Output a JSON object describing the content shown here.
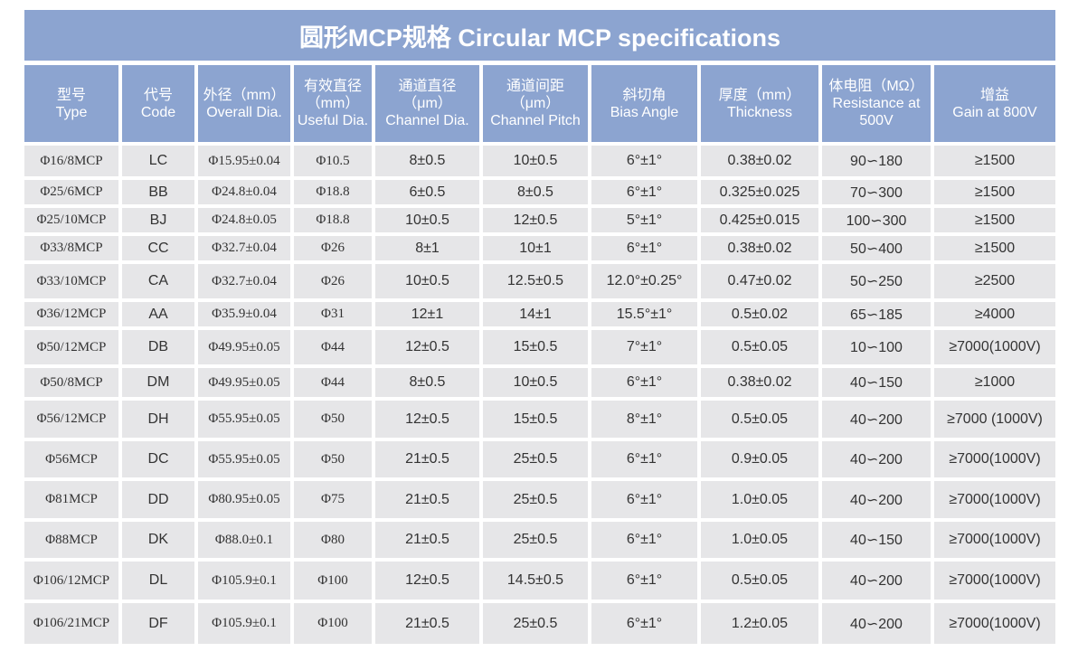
{
  "title": "圆形MCP规格  Circular MCP specifications",
  "colors": {
    "header_bg": "#8ca4d0",
    "header_text": "#ffffff",
    "cell_bg": "#e6e6e8",
    "cell_text": "#333333"
  },
  "headers": [
    {
      "zh": "型号",
      "en": "Type"
    },
    {
      "zh": "代号",
      "en": "Code"
    },
    {
      "zh": "外径（mm）",
      "en": "Overall Dia."
    },
    {
      "zh": "有效直径",
      "unit": "（mm）",
      "en": "Useful Dia."
    },
    {
      "zh": "通道直径",
      "unit": "（μm）",
      "en": "Channel Dia."
    },
    {
      "zh": "通道间距",
      "unit": "（μm）",
      "en": "Channel Pitch"
    },
    {
      "zh": "斜切角",
      "en": "Bias Angle"
    },
    {
      "zh": "厚度（mm）",
      "en": "Thickness"
    },
    {
      "zh": "体电阻（MΩ）",
      "en": "Resistance at",
      "en2": "500V"
    },
    {
      "zh": "增益",
      "en": "Gain at 800V"
    }
  ],
  "rows": [
    [
      "Φ16/8MCP",
      "LC",
      "Φ15.95±0.04",
      "Φ10.5",
      "8±0.5",
      "10±0.5",
      "6°±1°",
      "0.38±0.02",
      "90∽180",
      "≥1500"
    ],
    [
      "Φ25/6MCP",
      "BB",
      "Φ24.8±0.04",
      "Φ18.8",
      "6±0.5",
      "8±0.5",
      "6°±1°",
      "0.325±0.025",
      "70∽300",
      "≥1500"
    ],
    [
      "Φ25/10MCP",
      "BJ",
      "Φ24.8±0.05",
      "Φ18.8",
      "10±0.5",
      "12±0.5",
      "5°±1°",
      "0.425±0.015",
      "100∽300",
      "≥1500"
    ],
    [
      "Φ33/8MCP",
      "CC",
      "Φ32.7±0.04",
      "Φ26",
      "8±1",
      "10±1",
      "6°±1°",
      "0.38±0.02",
      "50∽400",
      "≥1500"
    ],
    [
      "Φ33/10MCP",
      "CA",
      "Φ32.7±0.04",
      "Φ26",
      "10±0.5",
      "12.5±0.5",
      "12.0°±0.25°",
      "0.47±0.02",
      "50∽250",
      "≥2500"
    ],
    [
      "Φ36/12MCP",
      "AA",
      "Φ35.9±0.04",
      "Φ31",
      "12±1",
      "14±1",
      "15.5°±1°",
      "0.5±0.02",
      "65∽185",
      "≥4000"
    ],
    [
      "Φ50/12MCP",
      "DB",
      "Φ49.95±0.05",
      "Φ44",
      "12±0.5",
      "15±0.5",
      "7°±1°",
      "0.5±0.05",
      "10∽100",
      "≥7000(1000V)"
    ],
    [
      "Φ50/8MCP",
      "DM",
      "Φ49.95±0.05",
      "Φ44",
      "8±0.5",
      "10±0.5",
      "6°±1°",
      "0.38±0.02",
      "40∽150",
      "≥1000"
    ],
    [
      "Φ56/12MCP",
      "DH",
      "Φ55.95±0.05",
      "Φ50",
      "12±0.5",
      "15±0.5",
      "8°±1°",
      "0.5±0.05",
      "40∽200",
      "≥7000 (1000V)"
    ],
    [
      "Φ56MCP",
      "DC",
      "Φ55.95±0.05",
      "Φ50",
      "21±0.5",
      "25±0.5",
      "6°±1°",
      "0.9±0.05",
      "40∽200",
      "≥7000(1000V)"
    ],
    [
      "Φ81MCP",
      "DD",
      "Φ80.95±0.05",
      "Φ75",
      "21±0.5",
      "25±0.5",
      "6°±1°",
      "1.0±0.05",
      "40∽200",
      "≥7000(1000V)"
    ],
    [
      "Φ88MCP",
      "DK",
      "Φ88.0±0.1",
      "Φ80",
      "21±0.5",
      "25±0.5",
      "6°±1°",
      "1.0±0.05",
      "40∽150",
      "≥7000(1000V)"
    ],
    [
      "Φ106/12MCP",
      "DL",
      "Φ105.9±0.1",
      "Φ100",
      "12±0.5",
      "14.5±0.5",
      "6°±1°",
      "0.5±0.05",
      "40∽200",
      "≥7000(1000V)"
    ],
    [
      "Φ106/21MCP",
      "DF",
      "Φ105.9±0.1",
      "Φ100",
      "21±0.5",
      "25±0.5",
      "6°±1°",
      "1.2±0.05",
      "40∽200",
      "≥7000(1000V)"
    ]
  ]
}
